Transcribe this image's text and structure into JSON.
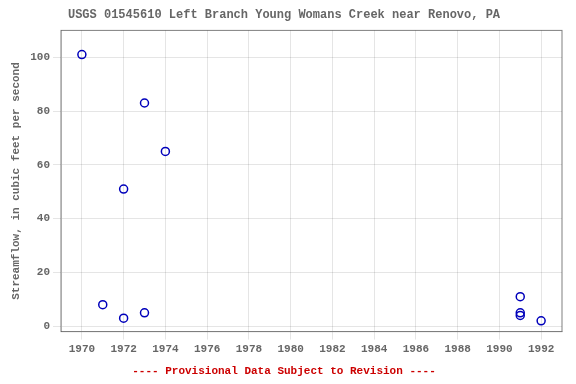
{
  "chart_data": {
    "type": "scatter",
    "title": "USGS 01545610 Left Branch Young Womans Creek near Renovo, PA",
    "ylabel": "Streamflow, in cubic feet per second",
    "annotation": "---- Provisional Data Subject to Revision ----",
    "x": [
      1970,
      1971,
      1972,
      1972,
      1973,
      1973,
      1974,
      1991,
      1991,
      1991,
      1992
    ],
    "values": [
      101,
      8,
      3,
      51,
      5,
      83,
      65,
      11,
      5,
      4,
      2
    ],
    "xlim": [
      1969.0,
      1993.0
    ],
    "ylim": [
      -2,
      110
    ],
    "xticks": [
      1970,
      1972,
      1974,
      1976,
      1978,
      1980,
      1982,
      1984,
      1986,
      1988,
      1990,
      1992
    ],
    "yticks": [
      0,
      20,
      40,
      60,
      80,
      100
    ],
    "color": "#0000BB",
    "marker": "circle",
    "grid": true
  }
}
